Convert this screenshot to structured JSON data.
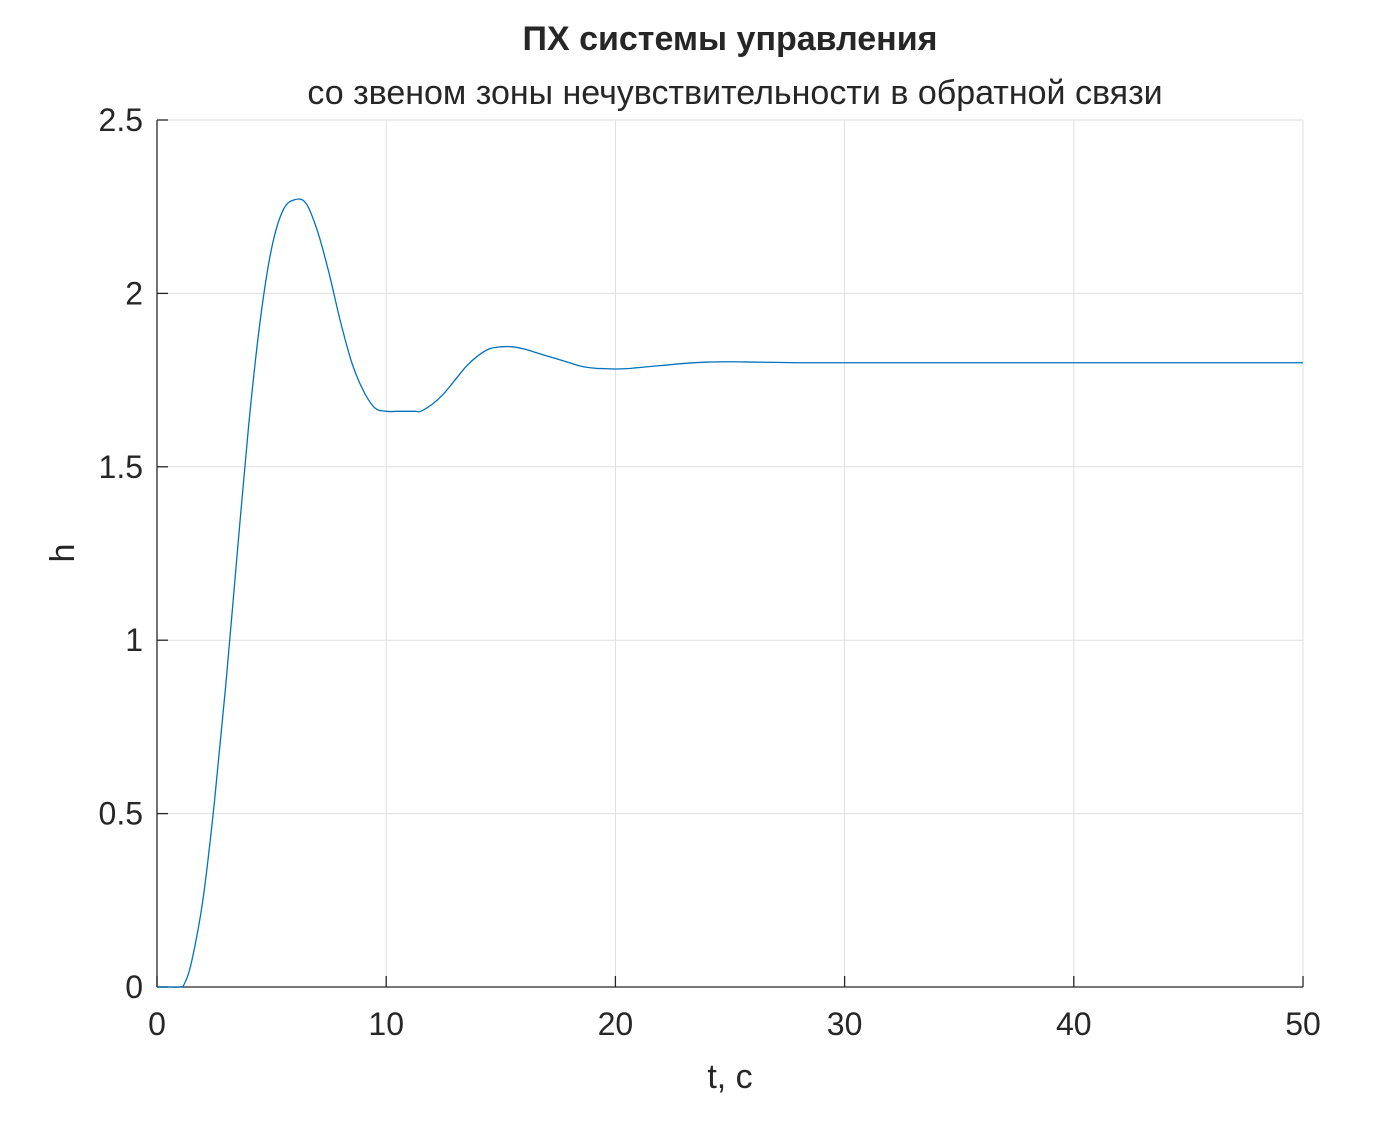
{
  "chart_data": {
    "type": "line",
    "title": "ПХ системы управления",
    "subtitle": "со звеном зоны нечувствительности в обратной связи",
    "xlabel": "t, c",
    "ylabel": "h",
    "xlim": [
      0,
      50
    ],
    "ylim": [
      0,
      2.5
    ],
    "xticks": [
      0,
      10,
      20,
      30,
      40,
      50
    ],
    "yticks": [
      0,
      0.5,
      1,
      1.5,
      2,
      2.5
    ],
    "xtick_labels": [
      "0",
      "10",
      "20",
      "30",
      "40",
      "50"
    ],
    "ytick_labels": [
      "0",
      "0.5",
      "1",
      "1.5",
      "2",
      "2.5"
    ],
    "grid": true,
    "series": [
      {
        "color": "#0072BD",
        "x": [
          0,
          0.5,
          1.0,
          1.2,
          1.5,
          2.0,
          2.5,
          3.0,
          3.5,
          4.0,
          4.5,
          5.0,
          5.5,
          6.0,
          6.5,
          7.0,
          7.5,
          8.0,
          8.5,
          9.0,
          9.5,
          10.0,
          10.5,
          11.0,
          11.3,
          11.5,
          12.0,
          12.5,
          13.0,
          13.5,
          14.0,
          14.5,
          15.0,
          15.5,
          16.0,
          16.5,
          17.0,
          17.5,
          18.0,
          18.5,
          19.0,
          19.5,
          20.0,
          20.5,
          21.0,
          22.0,
          23.0,
          24.0,
          25.0,
          26.0,
          27.0,
          28.0,
          30.0,
          35.0,
          40.0,
          45.0,
          50.0
        ],
        "y": [
          0,
          0,
          0,
          0.01,
          0.07,
          0.25,
          0.53,
          0.87,
          1.25,
          1.62,
          1.92,
          2.13,
          2.24,
          2.27,
          2.26,
          2.18,
          2.06,
          1.92,
          1.8,
          1.72,
          1.67,
          1.66,
          1.66,
          1.66,
          1.66,
          1.66,
          1.68,
          1.71,
          1.75,
          1.79,
          1.82,
          1.84,
          1.846,
          1.846,
          1.84,
          1.83,
          1.82,
          1.81,
          1.8,
          1.79,
          1.785,
          1.783,
          1.782,
          1.783,
          1.786,
          1.792,
          1.798,
          1.802,
          1.803,
          1.802,
          1.801,
          1.8,
          1.8,
          1.8,
          1.8,
          1.8,
          1.8
        ]
      }
    ]
  }
}
